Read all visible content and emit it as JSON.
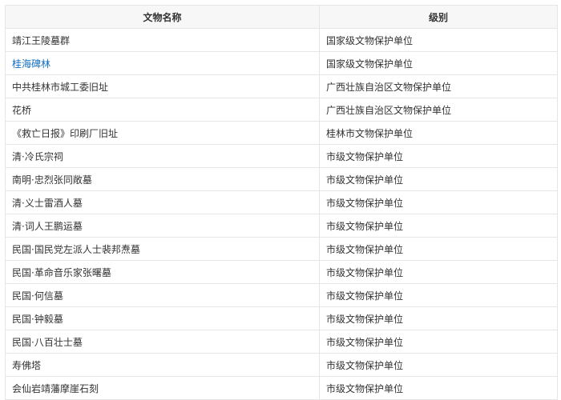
{
  "table": {
    "headers": [
      "文物名称",
      "级别"
    ],
    "link_color": "#136ec2",
    "rows": [
      {
        "name": "靖江王陵墓群",
        "level": "国家级文物保护单位",
        "link": false
      },
      {
        "name": "桂海碑林",
        "level": "国家级文物保护单位",
        "link": true
      },
      {
        "name": "中共桂林市城工委旧址",
        "level": "广西壮族自治区文物保护单位",
        "link": false
      },
      {
        "name": "花桥",
        "level": "广西壮族自治区文物保护单位",
        "link": false
      },
      {
        "name": "《救亡日报》印刷厂旧址",
        "level": "桂林市文物保护单位",
        "link": false
      },
      {
        "name": "清·冷氏宗祠",
        "level": "市级文物保护单位",
        "link": false
      },
      {
        "name": "南明·忠烈张同敞墓",
        "level": "市级文物保护单位",
        "link": false
      },
      {
        "name": "清·义士雷酒人墓",
        "level": "市级文物保护单位",
        "link": false
      },
      {
        "name": "清·词人王鹏运墓",
        "level": "市级文物保护单位",
        "link": false
      },
      {
        "name": "民国·国民党左派人士裴邦焘墓",
        "level": "市级文物保护单位",
        "link": false
      },
      {
        "name": "民国·革命音乐家张曙墓",
        "level": "市级文物保护单位",
        "link": false
      },
      {
        "name": "民国·何信墓",
        "level": "市级文物保护单位",
        "link": false
      },
      {
        "name": "民国·钟毅墓",
        "level": "市级文物保护单位",
        "link": false
      },
      {
        "name": "民国·八百壮士墓",
        "level": "市级文物保护单位",
        "link": false
      },
      {
        "name": "寿佛塔",
        "level": "市级文物保护单位",
        "link": false
      },
      {
        "name": "会仙岩靖藩摩崖石刻",
        "level": "市级文物保护单位",
        "link": false
      }
    ]
  }
}
